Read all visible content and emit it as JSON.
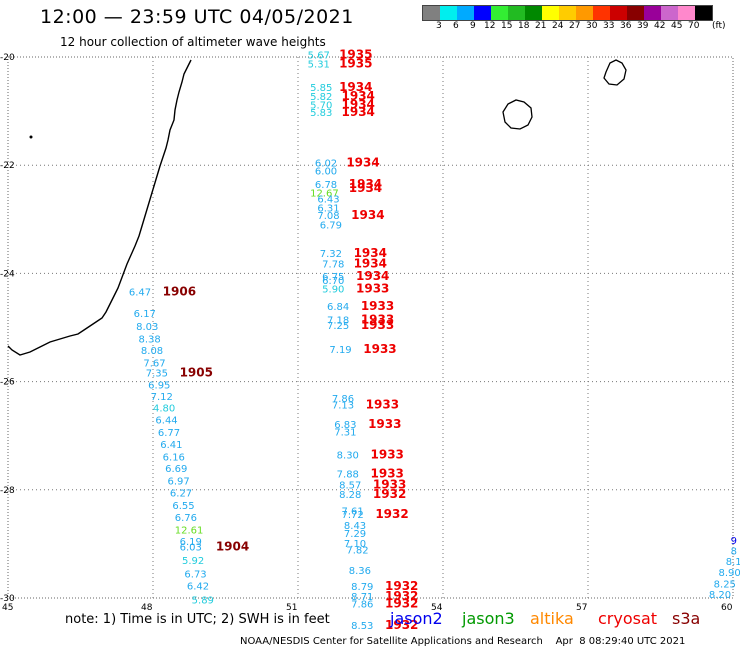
{
  "header": {
    "title": "12:00 — 23:59 UTC 04/05/2021",
    "subtitle": "12 hour collection of altimeter wave heights"
  },
  "legend": {
    "colors": [
      "#808080",
      "#00eeee",
      "#00aaff",
      "#0000ff",
      "#33ee33",
      "#22bb22",
      "#008800",
      "#ffff00",
      "#ffcc00",
      "#ff9900",
      "#ff3300",
      "#cc0000",
      "#880000",
      "#990099",
      "#cc66cc",
      "#ff88cc",
      "#000000"
    ],
    "labels": [
      "3",
      "6",
      "9",
      "12",
      "15",
      "18",
      "21",
      "24",
      "27",
      "30",
      "33",
      "36",
      "39",
      "42",
      "45",
      "70"
    ],
    "unit": "(ft)"
  },
  "map": {
    "lon_labels": [
      "45",
      "48",
      "51",
      "54",
      "57",
      "60"
    ],
    "lat_labels": [
      "-20",
      "-22",
      "-24",
      "-26",
      "-28",
      "-30"
    ]
  },
  "observations": [
    {
      "text": "5.67",
      "color": "#22ccdd",
      "lon": 51.2,
      "lat": -19.95
    },
    {
      "text": "5.31",
      "color": "#22ccdd",
      "lon": 51.2,
      "lat": -20.12
    },
    {
      "text": "5.85",
      "color": "#22ccdd",
      "lon": 51.25,
      "lat": -20.55
    },
    {
      "text": "5.82",
      "color": "#22ccdd",
      "lon": 51.25,
      "lat": -20.72
    },
    {
      "text": "5.70",
      "color": "#22ccdd",
      "lon": 51.25,
      "lat": -20.88
    },
    {
      "text": "5.83",
      "color": "#22ccdd",
      "lon": 51.25,
      "lat": -21.02
    },
    {
      "text": "6.02",
      "color": "#22aaee",
      "lon": 51.35,
      "lat": -21.95
    },
    {
      "text": "6.00",
      "color": "#22aaee",
      "lon": 51.35,
      "lat": -22.1
    },
    {
      "text": "6.78",
      "color": "#22aaee",
      "lon": 51.35,
      "lat": -22.35
    },
    {
      "text": "12.67",
      "color": "#66dd22",
      "lon": 51.25,
      "lat": -22.5
    },
    {
      "text": "6.43",
      "color": "#22aaee",
      "lon": 51.4,
      "lat": -22.62
    },
    {
      "text": "6.31",
      "color": "#22aaee",
      "lon": 51.4,
      "lat": -22.78
    },
    {
      "text": "7.08",
      "color": "#22aaee",
      "lon": 51.4,
      "lat": -22.92
    },
    {
      "text": "6.79",
      "color": "#22aaee",
      "lon": 51.45,
      "lat": -23.1
    },
    {
      "text": "7.32",
      "color": "#22aaee",
      "lon": 51.45,
      "lat": -23.62
    },
    {
      "text": "7.78",
      "color": "#22aaee",
      "lon": 51.5,
      "lat": -23.82
    },
    {
      "text": "6.75",
      "color": "#22aaee",
      "lon": 51.5,
      "lat": -24.05
    },
    {
      "text": "6.70",
      "color": "#22aaee",
      "lon": 51.5,
      "lat": -24.12
    },
    {
      "text": "5.90",
      "color": "#22ccdd",
      "lon": 51.5,
      "lat": -24.28
    },
    {
      "text": "6.84",
      "color": "#22aaee",
      "lon": 51.6,
      "lat": -24.6
    },
    {
      "text": "7.18",
      "color": "#22aaee",
      "lon": 51.6,
      "lat": -24.85
    },
    {
      "text": "7.25",
      "color": "#22aaee",
      "lon": 51.6,
      "lat": -24.95
    },
    {
      "text": "7.19",
      "color": "#22aaee",
      "lon": 51.65,
      "lat": -25.4
    },
    {
      "text": "7.86",
      "color": "#22aaee",
      "lon": 51.7,
      "lat": -26.3
    },
    {
      "text": "7.13",
      "color": "#22aaee",
      "lon": 51.7,
      "lat": -26.42
    },
    {
      "text": "6.83",
      "color": "#22aaee",
      "lon": 51.75,
      "lat": -26.78
    },
    {
      "text": "7.31",
      "color": "#22aaee",
      "lon": 51.75,
      "lat": -26.92
    },
    {
      "text": "8.30",
      "color": "#22aaee",
      "lon": 51.8,
      "lat": -27.35
    },
    {
      "text": "7.88",
      "color": "#22aaee",
      "lon": 51.8,
      "lat": -27.7
    },
    {
      "text": "8.57",
      "color": "#22aaee",
      "lon": 51.85,
      "lat": -27.9
    },
    {
      "text": "8.28",
      "color": "#22aaee",
      "lon": 51.85,
      "lat": -28.08
    },
    {
      "text": "7.61",
      "color": "#22aaee",
      "lon": 51.9,
      "lat": -28.38
    },
    {
      "text": "7.72",
      "color": "#22aaee",
      "lon": 51.9,
      "lat": -28.45
    },
    {
      "text": "8.43",
      "color": "#22aaee",
      "lon": 51.95,
      "lat": -28.65
    },
    {
      "text": "7.29",
      "color": "#22aaee",
      "lon": 51.95,
      "lat": -28.8
    },
    {
      "text": "7.10",
      "color": "#22aaee",
      "lon": 51.95,
      "lat": -28.98
    },
    {
      "text": "7.82",
      "color": "#22aaee",
      "lon": 52.0,
      "lat": -29.1
    },
    {
      "text": "8.36",
      "color": "#22aaee",
      "lon": 52.05,
      "lat": -29.48
    },
    {
      "text": "8.79",
      "color": "#22aaee",
      "lon": 52.1,
      "lat": -29.78
    },
    {
      "text": "8.71",
      "color": "#22aaee",
      "lon": 52.1,
      "lat": -29.96
    },
    {
      "text": "7.86",
      "color": "#22aaee",
      "lon": 52.1,
      "lat": -30.1
    },
    {
      "text": "8.53",
      "color": "#22aaee",
      "lon": 52.1,
      "lat": -30.5
    },
    {
      "text": "1935",
      "color": "#ee0000",
      "lon": 51.85,
      "lat": -19.95
    },
    {
      "text": "1935",
      "color": "#ee0000",
      "lon": 51.85,
      "lat": -20.12
    },
    {
      "text": "1934",
      "color": "#ee0000",
      "lon": 51.85,
      "lat": -20.55
    },
    {
      "text": "1934",
      "color": "#ee0000",
      "lon": 51.9,
      "lat": -20.72
    },
    {
      "text": "1934",
      "color": "#ee0000",
      "lon": 51.9,
      "lat": -20.88
    },
    {
      "text": "1934",
      "color": "#ee0000",
      "lon": 51.9,
      "lat": -21.02
    },
    {
      "text": "1934",
      "color": "#ee0000",
      "lon": 52.0,
      "lat": -21.95
    },
    {
      "text": "1934",
      "color": "#ee0000",
      "lon": 52.05,
      "lat": -22.35
    },
    {
      "text": "1934",
      "color": "#ee0000",
      "lon": 52.05,
      "lat": -22.42
    },
    {
      "text": "1934",
      "color": "#ee0000",
      "lon": 52.1,
      "lat": -22.92
    },
    {
      "text": "1934",
      "color": "#ee0000",
      "lon": 52.15,
      "lat": -23.62
    },
    {
      "text": "1934",
      "color": "#ee0000",
      "lon": 52.15,
      "lat": -23.82
    },
    {
      "text": "1934",
      "color": "#ee0000",
      "lon": 52.2,
      "lat": -24.05
    },
    {
      "text": "1933",
      "color": "#ee0000",
      "lon": 52.2,
      "lat": -24.28
    },
    {
      "text": "1933",
      "color": "#ee0000",
      "lon": 52.3,
      "lat": -24.6
    },
    {
      "text": "1933",
      "color": "#ee0000",
      "lon": 52.3,
      "lat": -24.85
    },
    {
      "text": "1933",
      "color": "#ee0000",
      "lon": 52.3,
      "lat": -24.95
    },
    {
      "text": "1933",
      "color": "#ee0000",
      "lon": 52.35,
      "lat": -25.4
    },
    {
      "text": "1933",
      "color": "#ee0000",
      "lon": 52.4,
      "lat": -26.42
    },
    {
      "text": "1933",
      "color": "#ee0000",
      "lon": 52.45,
      "lat": -26.78
    },
    {
      "text": "1933",
      "color": "#ee0000",
      "lon": 52.5,
      "lat": -27.35
    },
    {
      "text": "1933",
      "color": "#ee0000",
      "lon": 52.5,
      "lat": -27.7
    },
    {
      "text": "1933",
      "color": "#ee0000",
      "lon": 52.55,
      "lat": -27.9
    },
    {
      "text": "1932",
      "color": "#ee0000",
      "lon": 52.55,
      "lat": -28.08
    },
    {
      "text": "1932",
      "color": "#ee0000",
      "lon": 52.6,
      "lat": -28.45
    },
    {
      "text": "1932",
      "color": "#ee0000",
      "lon": 52.8,
      "lat": -29.78
    },
    {
      "text": "1932",
      "color": "#ee0000",
      "lon": 52.8,
      "lat": -29.96
    },
    {
      "text": "1932",
      "color": "#ee0000",
      "lon": 52.8,
      "lat": -30.1
    },
    {
      "text": "1932",
      "color": "#ee0000",
      "lon": 52.8,
      "lat": -30.5
    },
    {
      "text": "6.47",
      "color": "#22aaee",
      "lon": 47.5,
      "lat": -24.33
    },
    {
      "text": "6.17",
      "color": "#22aaee",
      "lon": 47.6,
      "lat": -24.73
    },
    {
      "text": "8.03",
      "color": "#22aaee",
      "lon": 47.65,
      "lat": -24.97
    },
    {
      "text": "8.38",
      "color": "#22aaee",
      "lon": 47.7,
      "lat": -25.2
    },
    {
      "text": "8.08",
      "color": "#22aaee",
      "lon": 47.75,
      "lat": -25.42
    },
    {
      "text": "7.67",
      "color": "#22aaee",
      "lon": 47.8,
      "lat": -25.65
    },
    {
      "text": "7.35",
      "color": "#22aaee",
      "lon": 47.85,
      "lat": -25.83
    },
    {
      "text": "6.95",
      "color": "#22aaee",
      "lon": 47.9,
      "lat": -26.05
    },
    {
      "text": "7.12",
      "color": "#22aaee",
      "lon": 47.95,
      "lat": -26.27
    },
    {
      "text": "4.80",
      "color": "#22ccdd",
      "lon": 48.0,
      "lat": -26.48
    },
    {
      "text": "6.44",
      "color": "#22aaee",
      "lon": 48.05,
      "lat": -26.7
    },
    {
      "text": "6.77",
      "color": "#22aaee",
      "lon": 48.1,
      "lat": -26.93
    },
    {
      "text": "6.41",
      "color": "#22aaee",
      "lon": 48.15,
      "lat": -27.15
    },
    {
      "text": "6.16",
      "color": "#22aaee",
      "lon": 48.2,
      "lat": -27.38
    },
    {
      "text": "6.69",
      "color": "#22aaee",
      "lon": 48.25,
      "lat": -27.6
    },
    {
      "text": "6.97",
      "color": "#22aaee",
      "lon": 48.3,
      "lat": -27.83
    },
    {
      "text": "6.27",
      "color": "#22aaee",
      "lon": 48.35,
      "lat": -28.05
    },
    {
      "text": "6.55",
      "color": "#22aaee",
      "lon": 48.4,
      "lat": -28.28
    },
    {
      "text": "6.76",
      "color": "#22aaee",
      "lon": 48.45,
      "lat": -28.5
    },
    {
      "text": "12.61",
      "color": "#66dd22",
      "lon": 48.45,
      "lat": -28.73
    },
    {
      "text": "6.19",
      "color": "#22aaee",
      "lon": 48.55,
      "lat": -28.95
    },
    {
      "text": "6.03",
      "color": "#22aaee",
      "lon": 48.55,
      "lat": -29.05
    },
    {
      "text": "5.92",
      "color": "#22ccdd",
      "lon": 48.6,
      "lat": -29.3
    },
    {
      "text": "6.73",
      "color": "#22aaee",
      "lon": 48.65,
      "lat": -29.55
    },
    {
      "text": "6.42",
      "color": "#22aaee",
      "lon": 48.7,
      "lat": -29.77
    },
    {
      "text": "5.89",
      "color": "#22ccdd",
      "lon": 48.8,
      "lat": -30.03
    },
    {
      "text": "1906",
      "color": "#880000",
      "lon": 48.2,
      "lat": -24.33
    },
    {
      "text": "1905",
      "color": "#880000",
      "lon": 48.55,
      "lat": -25.83
    },
    {
      "text": "1904",
      "color": "#880000",
      "lon": 49.3,
      "lat": -29.05
    },
    {
      "text": "9",
      "color": "#0000ee",
      "lon": 59.95,
      "lat": -28.93
    },
    {
      "text": "8",
      "color": "#22aaee",
      "lon": 59.95,
      "lat": -29.12
    },
    {
      "text": "8.1",
      "color": "#22aaee",
      "lon": 59.85,
      "lat": -29.32
    },
    {
      "text": "8.90",
      "color": "#22aaee",
      "lon": 59.7,
      "lat": -29.52
    },
    {
      "text": "8.25",
      "color": "#22aaee",
      "lon": 59.6,
      "lat": -29.73
    },
    {
      "text": "8.20",
      "color": "#22aaee",
      "lon": 59.5,
      "lat": -29.93
    }
  ],
  "footer": {
    "note": "note: 1) Time is in UTC; 2) SWH is in feet",
    "satellites": [
      {
        "label": "jason2",
        "color": "#0000ee"
      },
      {
        "label": "jason3",
        "color": "#009900"
      },
      {
        "label": "altika",
        "color": "#ff8800"
      },
      {
        "label": "cryosat",
        "color": "#ee0000"
      },
      {
        "label": "s3a",
        "color": "#880000"
      }
    ],
    "credit": "NOAA/NESDIS Center for Satellite Applications and Research    Apr  8 08:29:40 UTC 2021"
  }
}
